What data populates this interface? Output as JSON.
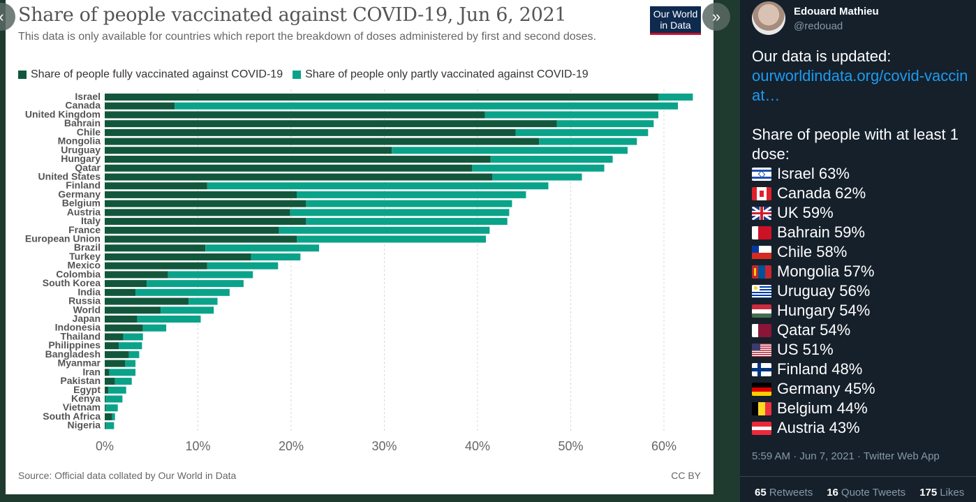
{
  "chart_data": {
    "type": "bar",
    "stacked": true,
    "orientation": "horizontal",
    "title": "Share of people vaccinated against COVID-19, Jun 6, 2021",
    "subtitle": "This data is only available for countries which report the breakdown of doses administered by first and second doses.",
    "xlim": [
      0,
      65
    ],
    "x_ticks": [
      "0%",
      "10%",
      "20%",
      "30%",
      "40%",
      "50%",
      "60%"
    ],
    "grid": "vertical dashed",
    "legend_position": "top",
    "categories": [
      "Israel",
      "Canada",
      "United Kingdom",
      "Bahrain",
      "Chile",
      "Mongolia",
      "Uruguay",
      "Hungary",
      "Qatar",
      "United States",
      "Finland",
      "Germany",
      "Belgium",
      "Austria",
      "Italy",
      "France",
      "European Union",
      "Brazil",
      "Turkey",
      "Mexico",
      "Colombia",
      "South Korea",
      "India",
      "Russia",
      "World",
      "Japan",
      "Indonesia",
      "Thailand",
      "Philippines",
      "Bangladesh",
      "Myanmar",
      "Iran",
      "Pakistan",
      "Egypt",
      "Kenya",
      "Vietnam",
      "South Africa",
      "Nigeria"
    ],
    "series": [
      {
        "name": "Share of people fully vaccinated against COVID-19",
        "color": "#12573c",
        "values": [
          59.4,
          7.5,
          40.8,
          48.5,
          44.1,
          46.6,
          30.8,
          41.4,
          39.4,
          41.6,
          11.0,
          20.6,
          21.6,
          19.9,
          21.6,
          18.7,
          20.6,
          10.8,
          15.7,
          11.0,
          6.8,
          4.5,
          3.3,
          9.0,
          6.0,
          3.5,
          4.1,
          2.0,
          1.5,
          2.6,
          2.2,
          0.5,
          1.1,
          0.4,
          0.1,
          0.1,
          0.8,
          0.1
        ]
      },
      {
        "name": "Share of people only partly vaccinated against COVID-19",
        "color": "#0aa38a",
        "values": [
          3.7,
          54.0,
          18.6,
          10.4,
          14.2,
          10.5,
          25.3,
          13.1,
          14.2,
          9.6,
          36.6,
          24.6,
          22.1,
          23.5,
          21.6,
          22.6,
          20.3,
          12.2,
          5.3,
          7.6,
          9.1,
          10.4,
          10.1,
          3.1,
          5.7,
          6.8,
          2.5,
          2.1,
          2.5,
          1.1,
          1.1,
          2.8,
          1.8,
          1.9,
          1.8,
          1.3,
          0.3,
          0.9
        ]
      }
    ]
  },
  "chart_source": "Source: Official data collated by Our World in Data",
  "chart_license": "CC BY",
  "logo_text_1": "Our World",
  "logo_text_2": "in Data",
  "nav": {
    "prev_icon": "‹",
    "next_icon": "»"
  },
  "tweet": {
    "author_name": "Edouard Mathieu",
    "author_handle": "@redouad",
    "intro": "Our data is updated:",
    "link": "ourworldindata.org/covid-vaccinat…",
    "subhead": "Share of people with at least 1 dose:",
    "rows": [
      {
        "flag": "israel",
        "text": "Israel 63%"
      },
      {
        "flag": "canada",
        "text": "Canada 62%"
      },
      {
        "flag": "uk",
        "text": "UK 59%"
      },
      {
        "flag": "bahrain",
        "text": "Bahrain 59%"
      },
      {
        "flag": "chile",
        "text": "Chile 58%"
      },
      {
        "flag": "mongolia",
        "text": "Mongolia 57%"
      },
      {
        "flag": "uruguay",
        "text": "Uruguay 56%"
      },
      {
        "flag": "hungary",
        "text": "Hungary 54%"
      },
      {
        "flag": "qatar",
        "text": "Qatar 54%"
      },
      {
        "flag": "us",
        "text": "US 51%"
      },
      {
        "flag": "finland",
        "text": "Finland 48%"
      },
      {
        "flag": "germany",
        "text": "Germany 45%"
      },
      {
        "flag": "belgium",
        "text": "Belgium 44%"
      },
      {
        "flag": "austria",
        "text": "Austria 43%"
      }
    ],
    "timestamp": "5:59 AM · Jun 7, 2021 · Twitter Web App",
    "stats": [
      {
        "num": "65",
        "label": "Retweets"
      },
      {
        "num": "16",
        "label": "Quote Tweets"
      },
      {
        "num": "175",
        "label": "Likes"
      }
    ]
  }
}
